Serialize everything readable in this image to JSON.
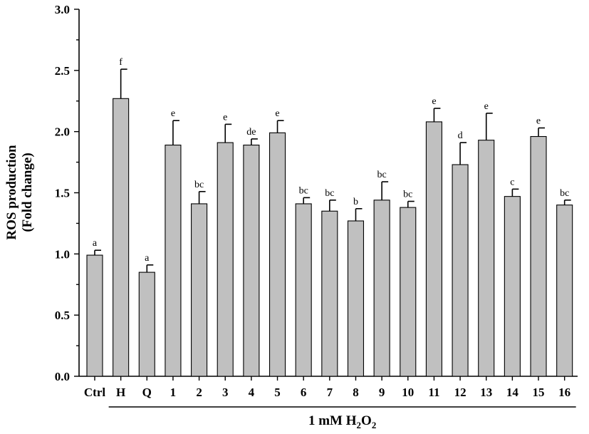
{
  "chart_data": {
    "type": "bar",
    "ylabel_line1": "ROS production",
    "ylabel_line2": "(Fold change)",
    "ylim": [
      0,
      3.0
    ],
    "yticks": [
      "0.0",
      "0.5",
      "1.0",
      "1.5",
      "2.0",
      "2.5",
      "3.0"
    ],
    "categories": [
      "Ctrl",
      "H",
      "Q",
      "1",
      "2",
      "3",
      "4",
      "5",
      "6",
      "7",
      "8",
      "9",
      "10",
      "11",
      "12",
      "13",
      "14",
      "15",
      "16"
    ],
    "values": [
      0.99,
      2.27,
      0.85,
      1.89,
      1.41,
      1.91,
      1.89,
      1.99,
      1.41,
      1.35,
      1.27,
      1.44,
      1.38,
      2.08,
      1.73,
      1.93,
      1.47,
      1.96,
      1.4
    ],
    "errors": [
      0.04,
      0.24,
      0.06,
      0.2,
      0.1,
      0.15,
      0.05,
      0.1,
      0.05,
      0.09,
      0.1,
      0.15,
      0.05,
      0.11,
      0.18,
      0.22,
      0.06,
      0.07,
      0.04
    ],
    "significance": [
      "a",
      "f",
      "a",
      "e",
      "bc",
      "e",
      "de",
      "e",
      "bc",
      "bc",
      "b",
      "bc",
      "bc",
      "e",
      "d",
      "e",
      "c",
      "e",
      "bc"
    ],
    "group": {
      "label_main": "1 mM H",
      "label_sub1": "2",
      "label_mid": "O",
      "label_sub2": "2",
      "from_category": "H",
      "to_category": "16"
    },
    "bar_color": "#c0c0c0"
  }
}
